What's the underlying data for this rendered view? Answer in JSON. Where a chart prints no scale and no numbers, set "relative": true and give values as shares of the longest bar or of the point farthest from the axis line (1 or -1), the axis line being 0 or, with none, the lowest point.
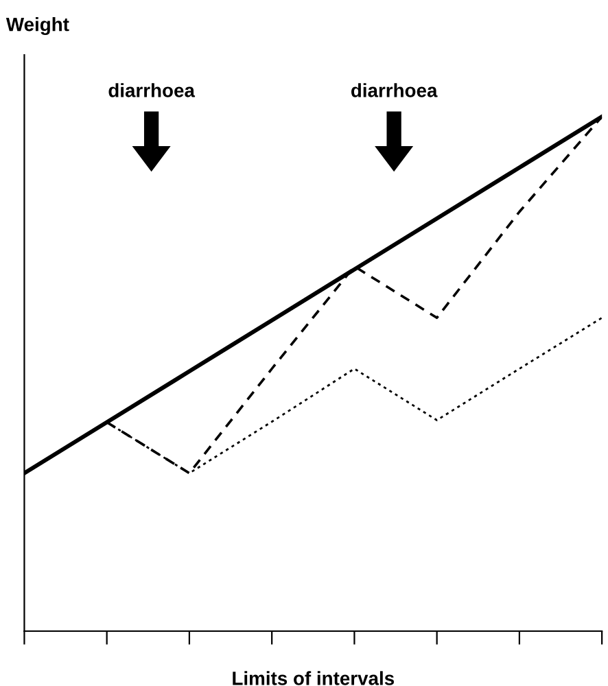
{
  "chart_data": {
    "type": "line",
    "relative": true,
    "ylabel": "Weight",
    "xlabel": "Limits of intervals",
    "categories": [
      null,
      null,
      null,
      null,
      null,
      null,
      null,
      null
    ],
    "series": [
      {
        "color": "#000000",
        "line_style": "solid",
        "values": [
          0.307,
          0.406,
          0.505,
          0.604,
          0.703,
          0.802,
          0.901,
          1.0
        ]
      },
      {
        "color": "#000000",
        "line_style": "dashed",
        "values": [
          null,
          0.406,
          0.307,
          0.51,
          0.709,
          0.609,
          0.815,
          1.0
        ]
      },
      {
        "color": "#000000",
        "line_style": "dotted",
        "values": [
          null,
          0.406,
          0.307,
          0.407,
          0.51,
          0.41,
          0.51,
          0.609
        ]
      }
    ],
    "annotations": [
      "diarrhoea",
      "diarrhoea"
    ],
    "tick_labels": false,
    "grid": false,
    "legend": false,
    "marker": "none"
  }
}
